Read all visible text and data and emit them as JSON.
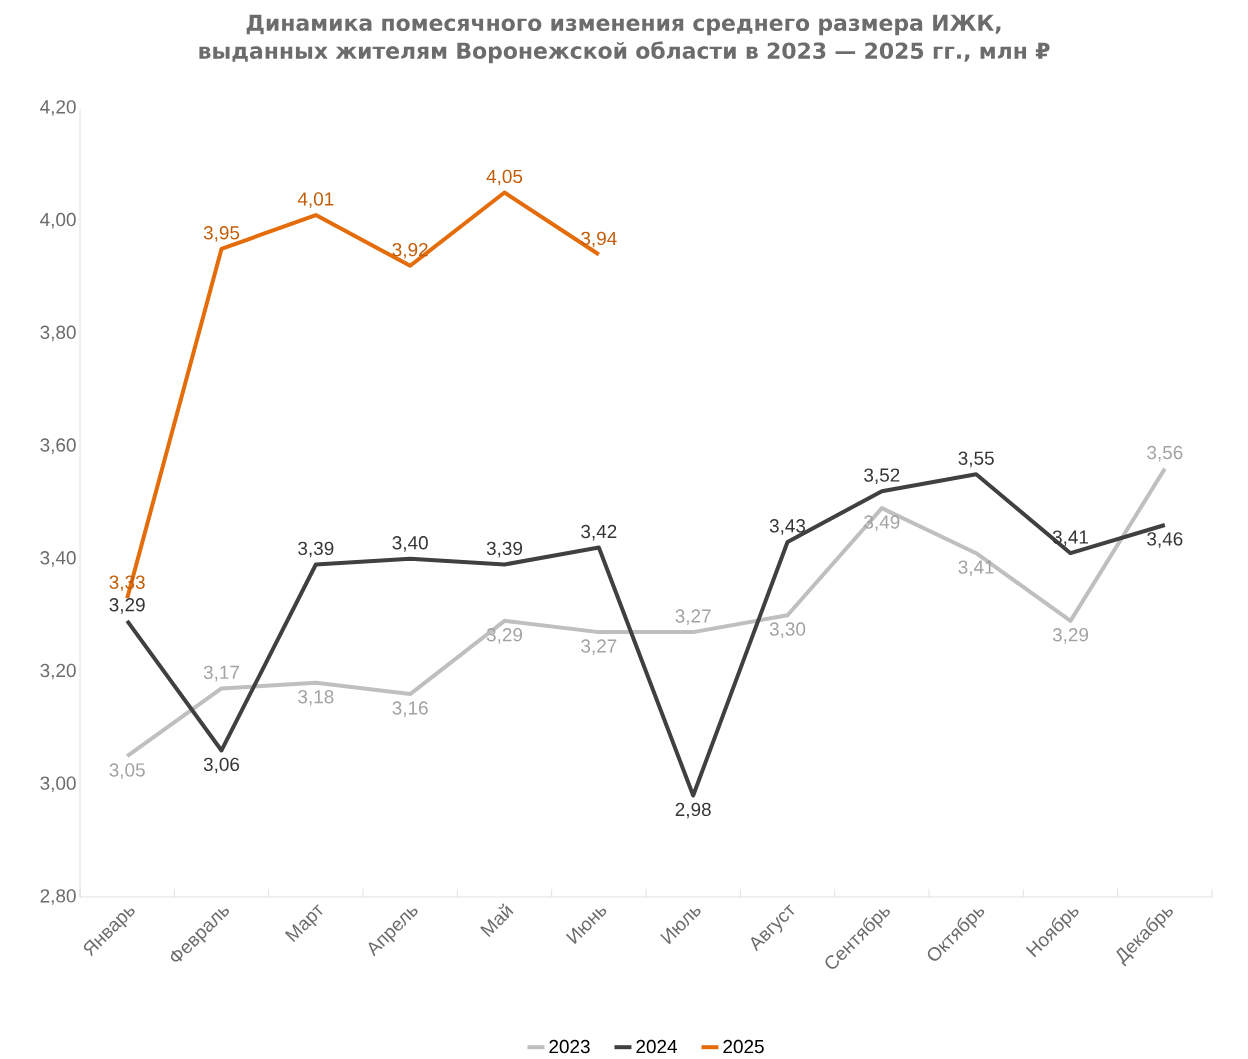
{
  "chart_data": {
    "type": "line",
    "title": "Динамика помесячного изменения среднего размера ИЖК, выданных жителям Воронежской области в 2023 — 2025 гг., млн ₽",
    "categories": [
      "Январь",
      "Февраль",
      "Март",
      "Апрель",
      "Май",
      "Июнь",
      "Июль",
      "Август",
      "Сентябрь",
      "Октябрь",
      "Ноябрь",
      "Декабрь"
    ],
    "series": [
      {
        "name": "2023",
        "color": "#bfbfbf",
        "values": [
          3.05,
          3.17,
          3.18,
          3.16,
          3.29,
          3.27,
          3.27,
          3.3,
          3.49,
          3.41,
          3.29,
          3.56
        ],
        "value_labels": [
          "3,05",
          "3,17",
          "3,18",
          "3,16",
          "3,29",
          "3,27",
          "3,27",
          "3,30",
          "3,49",
          "3,41",
          "3,29",
          "3,56"
        ]
      },
      {
        "name": "2024",
        "color": "#404040",
        "values": [
          3.29,
          3.06,
          3.39,
          3.4,
          3.39,
          3.42,
          2.98,
          3.43,
          3.52,
          3.55,
          3.41,
          3.46
        ],
        "value_labels": [
          "3,29",
          "3,06",
          "3,39",
          "3,40",
          "3,39",
          "3,42",
          "2,98",
          "3,43",
          "3,52",
          "3,55",
          "3,41",
          "3,46"
        ]
      },
      {
        "name": "2025",
        "color": "#e46c0a",
        "values": [
          3.33,
          3.95,
          4.01,
          3.92,
          4.05,
          3.94,
          null,
          null,
          null,
          null,
          null,
          null
        ],
        "value_labels": [
          "3,33",
          "3,95",
          "4,01",
          "3,92",
          "4,05",
          "3,94",
          null,
          null,
          null,
          null,
          null,
          null
        ]
      }
    ],
    "ylim": [
      2.8,
      4.2
    ],
    "yticks": [
      {
        "value": 2.8,
        "label": "2,80"
      },
      {
        "value": 3.0,
        "label": "3,00"
      },
      {
        "value": 3.2,
        "label": "3,20"
      },
      {
        "value": 3.4,
        "label": "3,40"
      },
      {
        "value": 3.6,
        "label": "3,60"
      },
      {
        "value": 3.8,
        "label": "3,80"
      },
      {
        "value": 4.0,
        "label": "4,00"
      },
      {
        "value": 4.2,
        "label": "4,20"
      }
    ],
    "legend": "bottom",
    "marker": "none",
    "line_style": "solid"
  }
}
